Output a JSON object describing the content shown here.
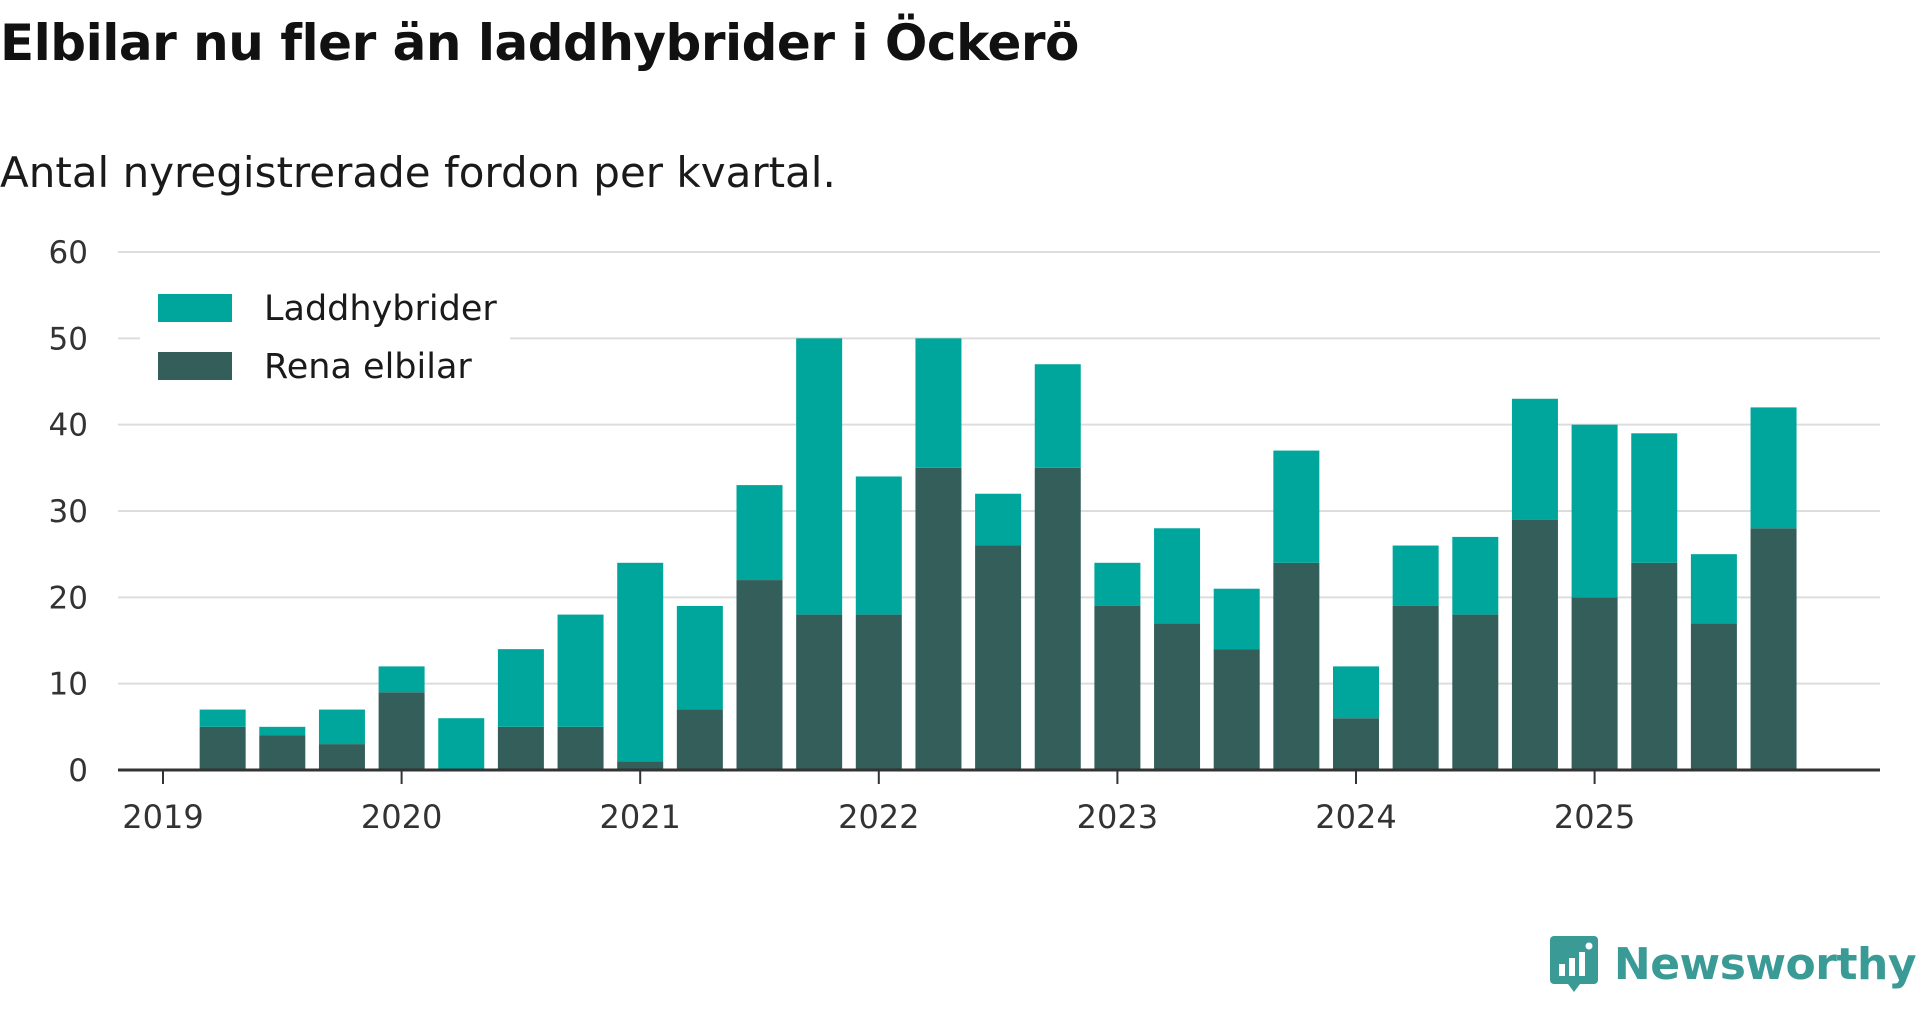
{
  "title": "Elbilar nu fler än laddhybrider i Öckerö",
  "subtitle": "Antal nyregistrerade fordon per kvartal.",
  "brand": "Newsworthy",
  "colors": {
    "laddhybrider": "#00a69b",
    "rena_elbilar": "#335e5a",
    "grid": "#dddddd",
    "axis": "#333333",
    "brand": "#3a9a95"
  },
  "chart_data": {
    "type": "bar",
    "stacked": true,
    "title": "Elbilar nu fler än laddhybrider i Öckerö",
    "subtitle": "Antal nyregistrerade fordon per kvartal.",
    "xlabel": "",
    "ylabel": "",
    "ylim": [
      0,
      60
    ],
    "yticks": [
      "0",
      "10",
      "20",
      "30",
      "40",
      "50",
      "60"
    ],
    "xticks": [
      "2019",
      "2020",
      "2021",
      "2022",
      "2023",
      "2024",
      "2025"
    ],
    "grid": true,
    "legend_position": "top-left",
    "categories": [
      "2019-Q2",
      "2019-Q3",
      "2019-Q4",
      "2020-Q1",
      "2020-Q2",
      "2020-Q3",
      "2020-Q4",
      "2021-Q1",
      "2021-Q2",
      "2021-Q3",
      "2021-Q4",
      "2022-Q1",
      "2022-Q2",
      "2022-Q3",
      "2022-Q4",
      "2023-Q1",
      "2023-Q2",
      "2023-Q3",
      "2023-Q4",
      "2024-Q1",
      "2024-Q2",
      "2024-Q3",
      "2024-Q4",
      "2025-Q1",
      "2025-Q2",
      "2025-Q3",
      "2025-Q4"
    ],
    "series": [
      {
        "name": "Rena elbilar",
        "values": [
          5,
          4,
          3,
          9,
          0,
          5,
          5,
          1,
          7,
          22,
          18,
          18,
          35,
          26,
          35,
          19,
          17,
          14,
          24,
          6,
          19,
          18,
          29,
          20,
          24,
          17,
          28
        ]
      },
      {
        "name": "Laddhybrider",
        "values": [
          2,
          1,
          4,
          3,
          6,
          9,
          13,
          23,
          12,
          11,
          32,
          16,
          15,
          6,
          12,
          5,
          11,
          7,
          13,
          6,
          7,
          9,
          14,
          20,
          15,
          8,
          14
        ]
      }
    ],
    "totals": [
      7,
      5,
      7,
      12,
      6,
      14,
      18,
      24,
      19,
      33,
      50,
      34,
      50,
      32,
      47,
      24,
      28,
      21,
      37,
      12,
      26,
      27,
      43,
      40,
      39,
      25,
      42
    ]
  }
}
